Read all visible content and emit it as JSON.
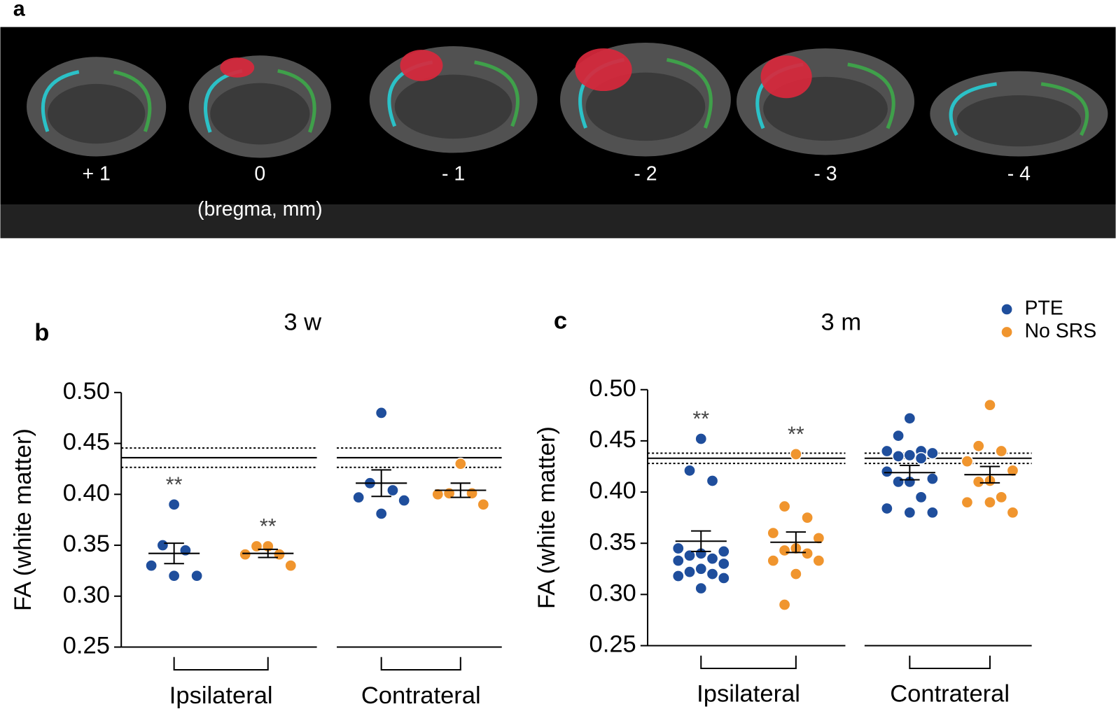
{
  "panel_a": {
    "letter": "a",
    "positions": [
      "+ 1",
      "0",
      "- 1",
      "- 2",
      "- 3",
      "- 4"
    ],
    "unit": "(bregma, mm)"
  },
  "chart_data": [
    {
      "panel": "b",
      "type": "strip",
      "title": "3 w",
      "ylabel": "FA (white matter)",
      "categories": [
        "Ipsilateral",
        "Contrateral"
      ],
      "ylim": [
        0.25,
        0.5
      ],
      "yticks": [
        {
          "value": 0.25,
          "label": "0.25"
        },
        {
          "value": 0.3,
          "label": "0.30"
        },
        0.35,
        {
          "value": 0.4,
          "label": "0.40"
        },
        0.45,
        {
          "value": 0.5,
          "label": "0.50"
        }
      ],
      "reference": {
        "mean": 0.436,
        "sem": 0.0095
      },
      "series": [
        {
          "name": "PTE",
          "color": "#1f4e9c",
          "values": [
            [
              0.39,
              0.35,
              0.345,
              0.33,
              0.32,
              0.32
            ],
            [
              0.48,
              0.411,
              0.404,
              0.397,
              0.394,
              0.381
            ]
          ],
          "mean": [
            0.342,
            0.411
          ],
          "sem": [
            0.01,
            0.013
          ],
          "labels": [
            "**",
            null
          ]
        },
        {
          "name": "No SRS",
          "color": "#f0952e",
          "values": [
            [
              0.349,
              0.349,
              0.341,
              0.341,
              0.33
            ],
            [
              0.43,
              0.401,
              0.401,
              0.4,
              0.39
            ]
          ],
          "mean": [
            0.342,
            0.404
          ],
          "sem": [
            0.004,
            0.007
          ],
          "labels": [
            "**",
            null
          ]
        }
      ]
    },
    {
      "panel": "c",
      "type": "strip",
      "title": "3 m",
      "ylabel": "FA (white matter)",
      "legend": "top-right",
      "categories": [
        "Ipsilateral",
        "Contrateral"
      ],
      "ylim": [
        0.25,
        0.5
      ],
      "yticks": [
        {
          "value": 0.25,
          "label": "0.25"
        },
        {
          "value": 0.3,
          "label": "0.30"
        },
        0.35,
        {
          "value": 0.4,
          "label": "0.40"
        },
        0.45,
        {
          "value": 0.5,
          "label": "0.50"
        }
      ],
      "reference": {
        "mean": 0.433,
        "sem": 0.005
      },
      "series": [
        {
          "name": "PTE",
          "color": "#1f4e9c",
          "values": [
            [
              0.452,
              0.421,
              0.411,
              0.345,
              0.342,
              0.34,
              0.338,
              0.335,
              0.333,
              0.33,
              0.325,
              0.322,
              0.32,
              0.318,
              0.316,
              0.306
            ],
            [
              0.472,
              0.455,
              0.44,
              0.44,
              0.438,
              0.436,
              0.435,
              0.433,
              0.42,
              0.413,
              0.41,
              0.41,
              0.395,
              0.384,
              0.38,
              0.38
            ]
          ],
          "mean": [
            0.352,
            0.419
          ],
          "sem": [
            0.01,
            0.007
          ],
          "labels": [
            "**",
            null
          ]
        },
        {
          "name": "No SRS",
          "color": "#f0952e",
          "values": [
            [
              0.437,
              0.386,
              0.375,
              0.36,
              0.355,
              0.345,
              0.343,
              0.34,
              0.333,
              0.333,
              0.32,
              0.29
            ],
            [
              0.485,
              0.445,
              0.44,
              0.43,
              0.421,
              0.411,
              0.41,
              0.395,
              0.39,
              0.38,
              0.39
            ]
          ],
          "mean": [
            0.351,
            0.417
          ],
          "sem": [
            0.01,
            0.008
          ],
          "labels": [
            "**",
            null
          ]
        }
      ]
    }
  ]
}
